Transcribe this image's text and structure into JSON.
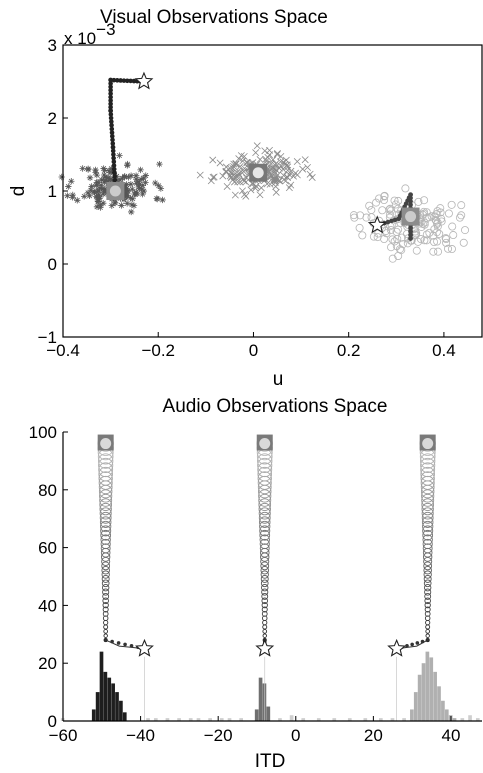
{
  "chart_data": [
    {
      "type": "scatter",
      "title": "Visual Observations Space",
      "xlabel": "u",
      "ylabel": "d",
      "y_scale_note": "x 10",
      "y_scale_exponent": "−3",
      "xlim": [
        -0.4,
        0.48
      ],
      "ylim": [
        -1,
        3
      ],
      "xticks": [
        -0.4,
        -0.2,
        0,
        0.2,
        0.4
      ],
      "xtick_labels": [
        "−0.4",
        "−0.2",
        "0",
        "0.2",
        "0.4"
      ],
      "yticks": [
        -1,
        0,
        1,
        2,
        3
      ],
      "ytick_labels": [
        "−1",
        "0",
        "1",
        "2",
        "3"
      ],
      "clusters": [
        {
          "marker": "asterisk",
          "center": [
            -0.29,
            1.05
          ],
          "spread": [
            0.04,
            0.16
          ],
          "count": 150,
          "color": "#555555",
          "seed": 11
        },
        {
          "marker": "x",
          "center": [
            0.01,
            1.25
          ],
          "spread": [
            0.045,
            0.12
          ],
          "count": 170,
          "color": "#8a8a8a",
          "seed": 23
        },
        {
          "marker": "circle",
          "center": [
            0.33,
            0.55
          ],
          "spread": [
            0.05,
            0.2
          ],
          "count": 140,
          "color": "#b5b5b5",
          "seed": 37
        }
      ],
      "trajectories": [
        {
          "color": "#222222",
          "start": [
            -0.23,
            2.5
          ],
          "end": [
            -0.29,
            1.0
          ],
          "path": [
            [
              -0.23,
              2.5
            ],
            [
              -0.3,
              2.52
            ],
            [
              -0.3,
              2.1
            ],
            [
              -0.295,
              1.6
            ],
            [
              -0.292,
              1.25
            ],
            [
              -0.29,
              1.0
            ]
          ],
          "final_estimate": [
            -0.29,
            1.0
          ]
        },
        {
          "color": "#444444",
          "start": [
            0.26,
            0.53
          ],
          "end": [
            0.33,
            0.65
          ],
          "path": [
            [
              0.26,
              0.53
            ],
            [
              0.305,
              0.62
            ],
            [
              0.33,
              0.95
            ],
            [
              0.33,
              0.35
            ],
            [
              0.33,
              0.65
            ]
          ],
          "final_estimate": [
            0.33,
            0.65
          ]
        }
      ],
      "static_estimates": [
        {
          "color": "#777777",
          "center": [
            0.01,
            1.25
          ]
        }
      ]
    },
    {
      "type": "bar",
      "title": "Audio Observations Space",
      "xlabel": "ITD",
      "xlim": [
        -60,
        48
      ],
      "ylim": [
        0,
        100
      ],
      "xticks": [
        -60,
        -40,
        -20,
        0,
        20,
        40
      ],
      "xtick_labels": [
        "−60",
        "−40",
        "−20",
        "0",
        "20",
        "40"
      ],
      "yticks": [
        0,
        20,
        40,
        60,
        80,
        100
      ],
      "ytick_labels": [
        "0",
        "20",
        "40",
        "60",
        "80",
        "100"
      ],
      "bin_width": 1.1,
      "histograms": [
        {
          "color": "#1e1e1e",
          "bins": [
            [
              -52,
              4
            ],
            [
              -51,
              10
            ],
            [
              -50,
              24
            ],
            [
              -49,
              17
            ],
            [
              -48,
              15
            ],
            [
              -47,
              13
            ],
            [
              -46,
              10
            ],
            [
              -45,
              7
            ],
            [
              -44,
              3
            ]
          ]
        },
        {
          "color": "#6f6f6f",
          "bins": [
            [
              -10,
              4
            ],
            [
              -9,
              15
            ],
            [
              -8,
              13
            ],
            [
              -7,
              5
            ]
          ]
        },
        {
          "color": "#b0b0b0",
          "bins": [
            [
              30,
              4
            ],
            [
              31,
              10
            ],
            [
              32,
              16
            ],
            [
              33,
              20
            ],
            [
              34,
              24
            ],
            [
              35,
              22
            ],
            [
              36,
              17
            ],
            [
              37,
              12
            ],
            [
              38,
              7
            ],
            [
              39,
              4
            ],
            [
              40,
              2
            ],
            [
              41,
              1
            ]
          ]
        },
        {
          "color": "#cfcfcf",
          "bins": [
            [
              -60,
              1
            ],
            [
              -38,
              1
            ],
            [
              -36,
              1
            ],
            [
              -33,
              1
            ],
            [
              -30,
              1
            ],
            [
              -27,
              1
            ],
            [
              -25,
              1
            ],
            [
              -22,
              1
            ],
            [
              -19,
              1
            ],
            [
              -17,
              1
            ],
            [
              -14,
              1
            ],
            [
              -4,
              1
            ],
            [
              -1,
              2
            ],
            [
              2,
              1
            ],
            [
              6,
              1
            ],
            [
              10,
              1
            ],
            [
              14,
              1
            ],
            [
              18,
              1
            ],
            [
              22,
              1
            ],
            [
              25,
              1
            ],
            [
              28,
              1
            ],
            [
              43,
              1
            ],
            [
              45,
              2
            ],
            [
              47,
              1
            ]
          ]
        }
      ],
      "trajectories": [
        {
          "color": "#333333",
          "start_itd": -39,
          "start_y": 25,
          "end_itd": -49,
          "top_y": 96
        },
        {
          "color": "#333333",
          "start_itd": -8,
          "start_y": 25,
          "end_itd": -8,
          "top_y": 96
        },
        {
          "color": "#333333",
          "start_itd": 26,
          "start_y": 25,
          "end_itd": 34,
          "top_y": 96
        }
      ]
    }
  ]
}
